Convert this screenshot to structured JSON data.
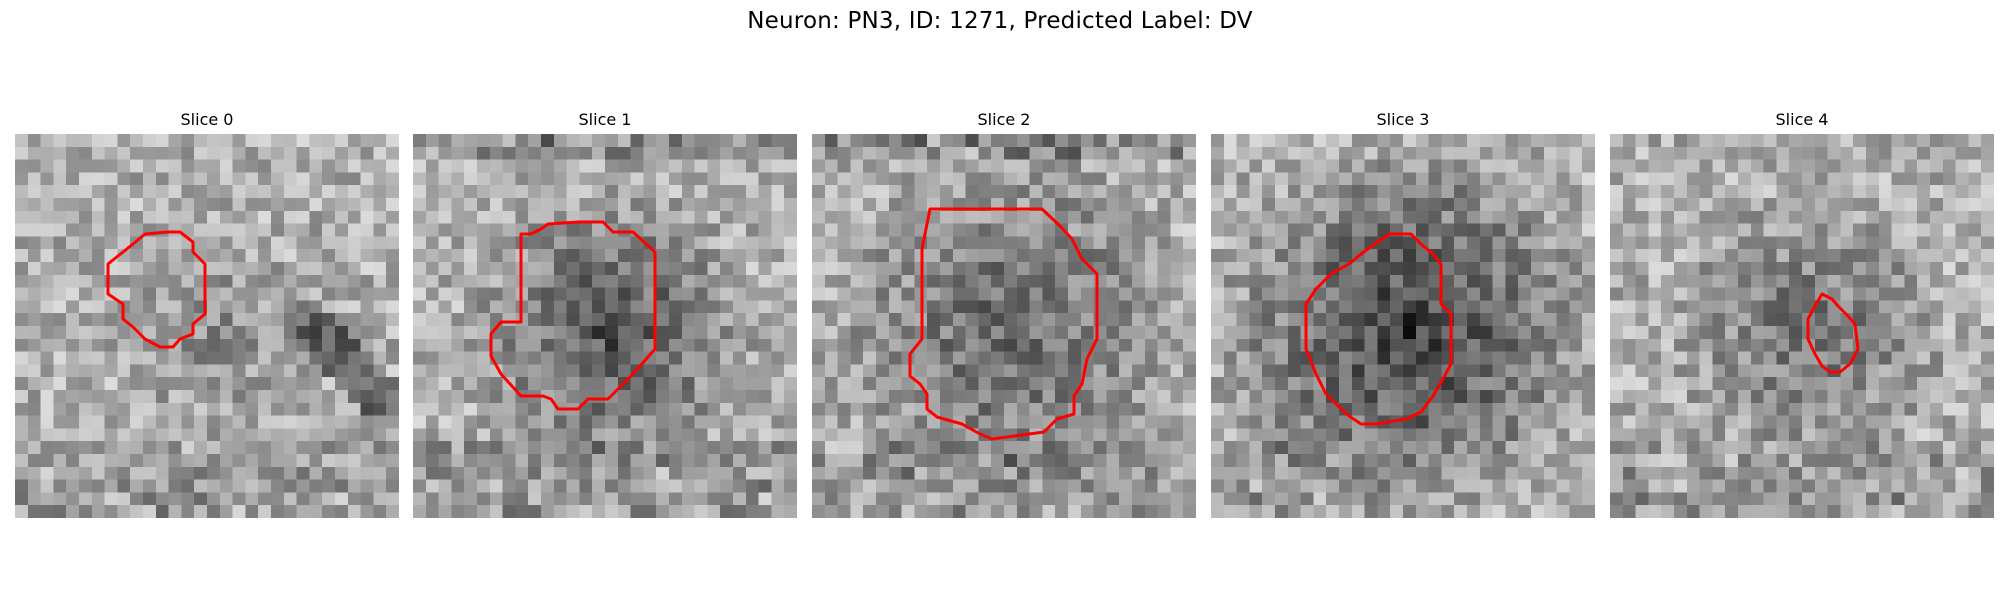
{
  "figure": {
    "title": "Neuron: PN3, ID: 1271, Predicted Label: DV",
    "contour_color": "#ff0000",
    "panels": [
      {
        "title": "Slice 0",
        "fill_level": 0.25,
        "fill_radius": 0.18
      },
      {
        "title": "Slice 1",
        "fill_level": 0.7,
        "fill_radius": 0.25
      },
      {
        "title": "Slice 2",
        "fill_level": 0.55,
        "fill_radius": 0.32
      },
      {
        "title": "Slice 3",
        "fill_level": 0.85,
        "fill_radius": 0.33
      },
      {
        "title": "Slice 4",
        "fill_level": 0.45,
        "fill_radius": 0.25
      }
    ]
  }
}
